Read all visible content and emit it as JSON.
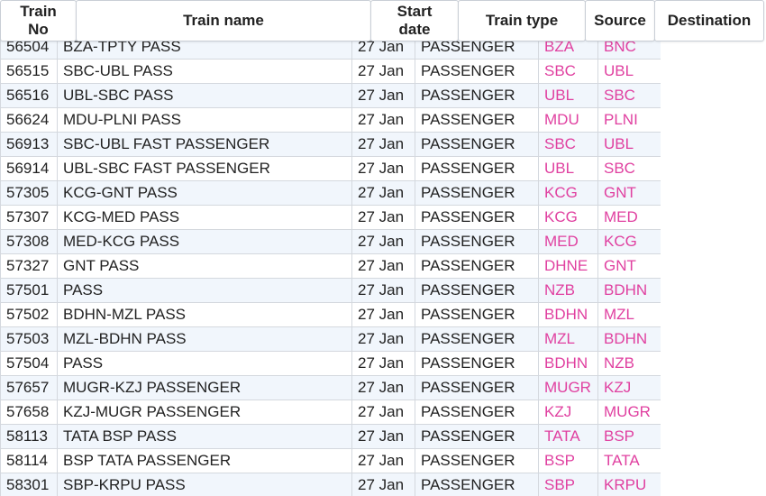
{
  "columns": [
    "Train\nNo",
    "Train name",
    "Start\ndate",
    "Train type",
    "Source",
    "Destination"
  ],
  "rows": [
    [
      "56504",
      "BZA-TPTY PASS",
      "27 Jan",
      "PASSENGER",
      "BZA",
      "BNC"
    ],
    [
      "56515",
      "SBC-UBL PASS",
      "27 Jan",
      "PASSENGER",
      "SBC",
      "UBL"
    ],
    [
      "56516",
      "UBL-SBC PASS",
      "27 Jan",
      "PASSENGER",
      "UBL",
      "SBC"
    ],
    [
      "56624",
      "MDU-PLNI PASS",
      "27 Jan",
      "PASSENGER",
      "MDU",
      "PLNI"
    ],
    [
      "56913",
      "SBC-UBL FAST PASSENGER",
      "27 Jan",
      "PASSENGER",
      "SBC",
      "UBL"
    ],
    [
      "56914",
      "UBL-SBC FAST PASSENGER",
      "27 Jan",
      "PASSENGER",
      "UBL",
      "SBC"
    ],
    [
      "57305",
      "KCG-GNT PASS",
      "27 Jan",
      "PASSENGER",
      "KCG",
      "GNT"
    ],
    [
      "57307",
      "KCG-MED PASS",
      "27 Jan",
      "PASSENGER",
      "KCG",
      "MED"
    ],
    [
      "57308",
      "MED-KCG PASS",
      "27 Jan",
      "PASSENGER",
      "MED",
      "KCG"
    ],
    [
      "57327",
      "GNT PASS",
      "27 Jan",
      "PASSENGER",
      "DHNE",
      "GNT"
    ],
    [
      "57501",
      "PASS",
      "27 Jan",
      "PASSENGER",
      "NZB",
      "BDHN"
    ],
    [
      "57502",
      "BDHN-MZL PASS",
      "27 Jan",
      "PASSENGER",
      "BDHN",
      "MZL"
    ],
    [
      "57503",
      "MZL-BDHN PASS",
      "27 Jan",
      "PASSENGER",
      "MZL",
      "BDHN"
    ],
    [
      "57504",
      "PASS",
      "27 Jan",
      "PASSENGER",
      "BDHN",
      "NZB"
    ],
    [
      "57657",
      "MUGR-KZJ PASSENGER",
      "27 Jan",
      "PASSENGER",
      "MUGR",
      "KZJ"
    ],
    [
      "57658",
      "KZJ-MUGR PASSENGER",
      "27 Jan",
      "PASSENGER",
      "KZJ",
      "MUGR"
    ],
    [
      "58113",
      "TATA BSP PASS",
      "27 Jan",
      "PASSENGER",
      "TATA",
      "BSP"
    ],
    [
      "58114",
      "BSP TATA PASSENGER",
      "27 Jan",
      "PASSENGER",
      "BSP",
      "TATA"
    ],
    [
      "58301",
      "SBP-KRPU PASS",
      "27 Jan",
      "PASSENGER",
      "SBP",
      "KRPU"
    ]
  ],
  "colors": {
    "station_code": "#e040a0",
    "row_stripe": "#f1f6fc",
    "border": "#d4d8de"
  }
}
